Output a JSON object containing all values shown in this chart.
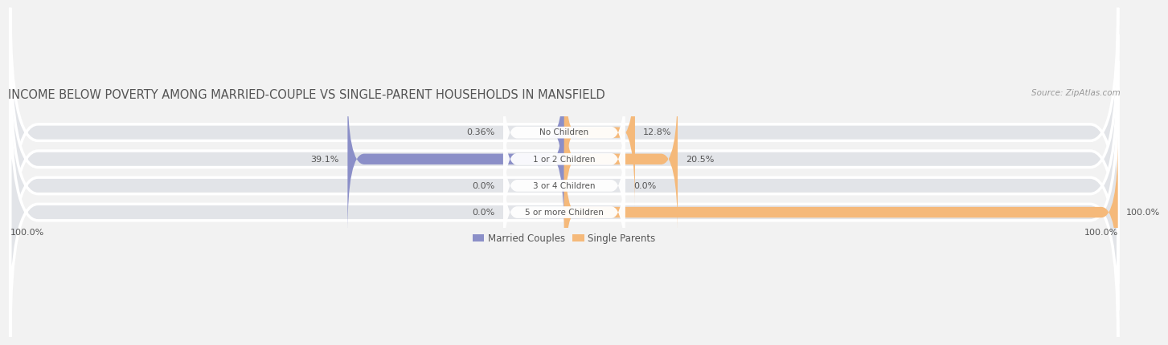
{
  "title": "INCOME BELOW POVERTY AMONG MARRIED-COUPLE VS SINGLE-PARENT HOUSEHOLDS IN MANSFIELD",
  "source": "Source: ZipAtlas.com",
  "categories": [
    "No Children",
    "1 or 2 Children",
    "3 or 4 Children",
    "5 or more Children"
  ],
  "married_values": [
    0.36,
    39.1,
    0.0,
    0.0
  ],
  "single_values": [
    12.8,
    20.5,
    0.0,
    100.0
  ],
  "married_color": "#8b8fc8",
  "single_color": "#f5b97a",
  "married_label": "Married Couples",
  "single_label": "Single Parents",
  "bg_color": "#f2f2f2",
  "bar_bg_color": "#e2e4e8",
  "label_bg_color": "#ffffff",
  "title_fontsize": 10.5,
  "axis_max": 100.0,
  "bottom_left_label": "100.0%",
  "bottom_right_label": "100.0%",
  "value_label_color": "#555555",
  "category_label_color": "#555555",
  "title_color": "#555555"
}
